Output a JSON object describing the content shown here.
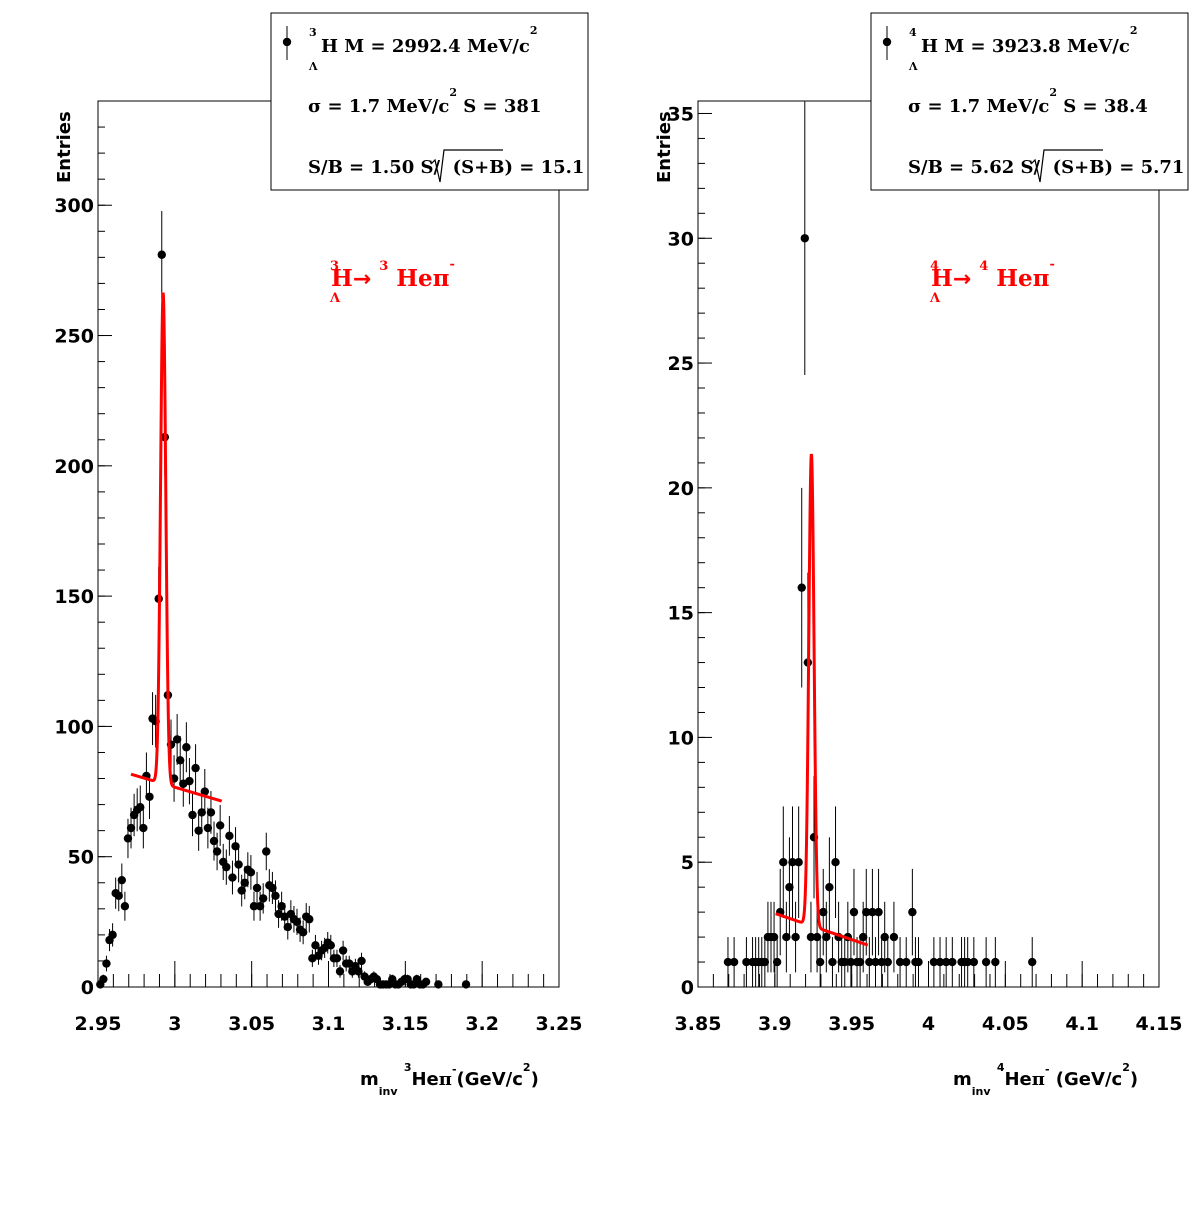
{
  "chart_data": [
    {
      "type": "scatter",
      "panel": "left",
      "ylabel": "Entries",
      "xlabel": {
        "m": "m",
        "inv": "inv",
        "sup3": "3",
        "he": "He",
        "pi": "π",
        "minus": "-",
        "unit": "(GeV/c",
        "unit2": "2",
        "close": ")"
      },
      "xlim": [
        2.95,
        3.25
      ],
      "ylim": [
        0,
        340
      ],
      "x_ticks": [
        "2.95",
        "3",
        "3.05",
        "3.1",
        "3.15",
        "3.2",
        "3.25"
      ],
      "x_tick_values": [
        2.95,
        3.0,
        3.05,
        3.1,
        3.15,
        3.2,
        3.25
      ],
      "y_ticks": [
        "0",
        "50",
        "100",
        "150",
        "200",
        "250",
        "300"
      ],
      "y_tick_values": [
        0,
        50,
        100,
        150,
        200,
        250,
        300
      ],
      "annotation": {
        "sup3a": "3",
        "h": "H",
        "lambda": "Λ",
        "arrow": "→",
        "sup3b": "3",
        "hepi": "Heπ",
        "minus": "-"
      },
      "legend": {
        "line1": {
          "sup": "3",
          "h": "H",
          "lambda": "Λ",
          "text": "M = 2992.4 MeV/c",
          "sup2": "2"
        },
        "line2": {
          "sigma": "σ = 1.7 MeV/c",
          "sup2": "2",
          "s": "S =  381"
        },
        "line3": {
          "sb": "S/B = 1.50",
          "s_over": "S/",
          "sqrt_arg": "(S+B)",
          "value": "= 15.1"
        }
      },
      "fit_color": "#ff0000",
      "fit": {
        "mean": 2.9924,
        "sigma": 0.0017,
        "amp": 188,
        "bg0": 78,
        "bg_slope": -175,
        "x_range": [
          2.9715,
          3.0305
        ]
      },
      "x": [
        2.9515,
        2.9535,
        2.9555,
        2.9575,
        2.9595,
        2.9615,
        2.9635,
        2.9655,
        2.9675,
        2.9695,
        2.9715,
        2.9735,
        2.9755,
        2.9775,
        2.9795,
        2.9815,
        2.9835,
        2.9855,
        2.9875,
        2.9895,
        2.9915,
        2.9935,
        2.9955,
        2.9975,
        2.9995,
        3.0015,
        3.0035,
        3.0055,
        3.0075,
        3.0095,
        3.0115,
        3.0135,
        3.0155,
        3.0175,
        3.0195,
        3.0215,
        3.0235,
        3.0255,
        3.0275,
        3.0295,
        3.0315,
        3.0335,
        3.0355,
        3.0375,
        3.0395,
        3.0415,
        3.0435,
        3.0455,
        3.0475,
        3.0495,
        3.0515,
        3.0535,
        3.0555,
        3.0575,
        3.0595,
        3.0615,
        3.0635,
        3.0655,
        3.0675,
        3.0695,
        3.0715,
        3.0735,
        3.0755,
        3.0775,
        3.0795,
        3.0815,
        3.0835,
        3.0855,
        3.0875,
        3.0895,
        3.0915,
        3.0935,
        3.0955,
        3.0975,
        3.0995,
        3.1015,
        3.1035,
        3.1055,
        3.1075,
        3.1095,
        3.1115,
        3.1135,
        3.1155,
        3.1175,
        3.1195,
        3.1215,
        3.1235,
        3.1255,
        3.1275,
        3.1295,
        3.1315,
        3.1335,
        3.1355,
        3.1375,
        3.1395,
        3.1415,
        3.1435,
        3.1455,
        3.1475,
        3.1495,
        3.1515,
        3.1535,
        3.1555,
        3.1575,
        3.1595,
        3.1615,
        3.1635,
        3.1715,
        3.1895
      ],
      "y": [
        1,
        3,
        9,
        18,
        20,
        36,
        35,
        41,
        31,
        57,
        61,
        66,
        68,
        69,
        61,
        81,
        73,
        103,
        102,
        149,
        281,
        211,
        112,
        93,
        80,
        95,
        87,
        78,
        92,
        79,
        66,
        84,
        60,
        67,
        75,
        61,
        67,
        56,
        52,
        62,
        48,
        46,
        58,
        42,
        54,
        47,
        37,
        40,
        45,
        44,
        31,
        38,
        31,
        34,
        52,
        39,
        38,
        35,
        28,
        31,
        27,
        23,
        28,
        26,
        25,
        22,
        21,
        27,
        26,
        11,
        16,
        12,
        14,
        15,
        17,
        16,
        11,
        11,
        6,
        14,
        9,
        9,
        6,
        8,
        6,
        10,
        4,
        2,
        3,
        4,
        3,
        1,
        1,
        1,
        1,
        3,
        1,
        1,
        2,
        3,
        3,
        1,
        1,
        3,
        1,
        1,
        2,
        1,
        1
      ]
    },
    {
      "type": "scatter",
      "panel": "right",
      "ylabel": "Entries",
      "xlabel": {
        "m": "m",
        "inv": "inv",
        "sup3": "4",
        "he": "He",
        "pi": "π",
        "minus": "-",
        "unit": " (GeV/c",
        "unit2": "2",
        "close": ")"
      },
      "xlim": [
        3.85,
        4.15
      ],
      "ylim": [
        0,
        35.5
      ],
      "x_ticks": [
        "3.85",
        "3.9",
        "3.95",
        "4",
        "4.05",
        "4.1",
        "4.15"
      ],
      "x_tick_values": [
        3.85,
        3.9,
        3.95,
        4.0,
        4.05,
        4.1,
        4.15
      ],
      "y_ticks": [
        "0",
        "5",
        "10",
        "15",
        "20",
        "25",
        "30",
        "35"
      ],
      "y_tick_values": [
        0,
        5,
        10,
        15,
        20,
        25,
        30,
        35
      ],
      "annotation": {
        "sup3a": "4",
        "h": "H",
        "lambda": "Λ",
        "arrow": "→",
        "sup3b": "4",
        "hepi": "Heπ",
        "minus": "-"
      },
      "legend": {
        "line1": {
          "sup": "4",
          "h": "H",
          "lambda": "Λ",
          "text": "M = 3923.8 MeV/c",
          "sup2": "2"
        },
        "line2": {
          "sigma": "σ = 1.7 MeV/c",
          "sup2": "2",
          "s": "S = 38.4"
        },
        "line3": {
          "sb": "S/B = 5.62",
          "s_over": "S/",
          "sqrt_arg": "(S+B)",
          "value": "= 5.71"
        }
      },
      "fit_color": "#ff0000",
      "fit": {
        "mean": 3.9238,
        "sigma": 0.0017,
        "amp": 18.9,
        "bg0": 2.45,
        "bg_slope": -21,
        "x_range": [
          3.9005,
          3.9605
        ]
      },
      "x": [
        3.8695,
        3.8735,
        3.8815,
        3.8855,
        3.8875,
        3.8895,
        3.8915,
        3.8935,
        3.8955,
        3.8975,
        3.8995,
        3.9015,
        3.9035,
        3.9055,
        3.9075,
        3.9095,
        3.9115,
        3.9135,
        3.9155,
        3.9175,
        3.9195,
        3.9215,
        3.9235,
        3.9255,
        3.9275,
        3.9295,
        3.9315,
        3.9335,
        3.9355,
        3.9375,
        3.9395,
        3.9415,
        3.9435,
        3.9455,
        3.9475,
        3.9495,
        3.9515,
        3.9535,
        3.9555,
        3.9575,
        3.9595,
        3.9615,
        3.9635,
        3.9655,
        3.9675,
        3.9695,
        3.9715,
        3.9735,
        3.9775,
        3.9815,
        3.9855,
        3.9895,
        3.9915,
        3.9935,
        4.0035,
        4.0075,
        4.0115,
        4.0155,
        4.0215,
        4.0235,
        4.0255,
        4.0295,
        4.0375,
        4.0435,
        4.0675
      ],
      "y": [
        1,
        1,
        1,
        1,
        1,
        1,
        1,
        1,
        2,
        2,
        2,
        1,
        3,
        5,
        2,
        4,
        5,
        2,
        5,
        16,
        30,
        13,
        2,
        6,
        2,
        1,
        3,
        2,
        4,
        1,
        5,
        2,
        1,
        1,
        2,
        1,
        3,
        1,
        1,
        2,
        3,
        1,
        3,
        1,
        3,
        1,
        2,
        1,
        2,
        1,
        1,
        3,
        1,
        1,
        1,
        1,
        1,
        1,
        1,
        1,
        1,
        1,
        1,
        1,
        1
      ]
    }
  ]
}
